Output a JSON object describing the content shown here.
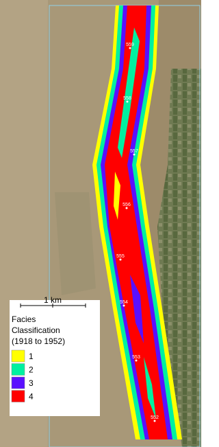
{
  "legend": {
    "scale_label": "1 km",
    "title_lines": [
      "Facies",
      "Classification",
      "(1918 to 1952)"
    ],
    "items": [
      {
        "label": "1",
        "color": "#ffff00"
      },
      {
        "label": "2",
        "color": "#00f0a0"
      },
      {
        "label": "3",
        "color": "#5a10ff"
      },
      {
        "label": "4",
        "color": "#ff0000"
      }
    ]
  },
  "river_miles": [
    "559",
    "558",
    "557",
    "556",
    "555",
    "554",
    "553",
    "552"
  ]
}
